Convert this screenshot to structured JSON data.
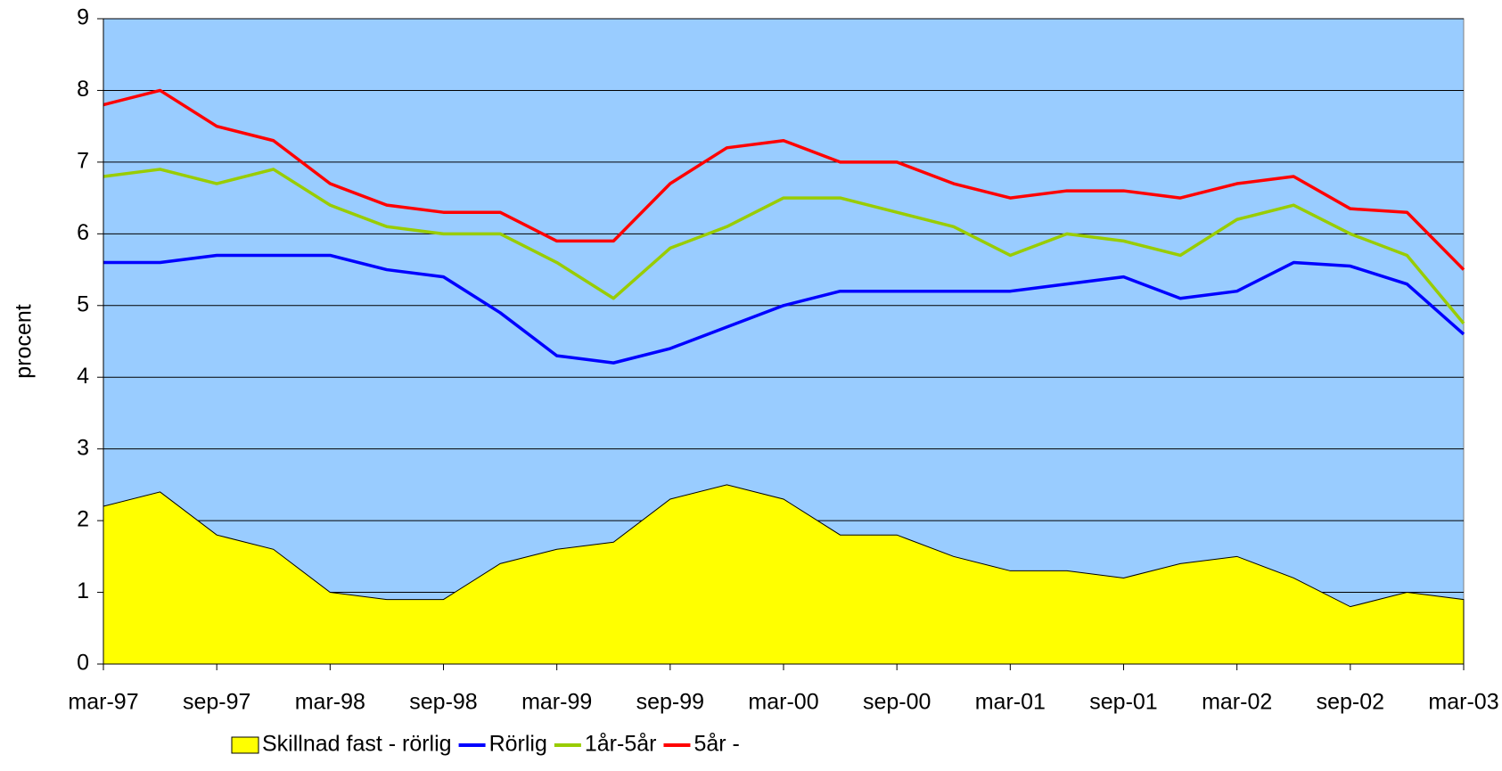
{
  "chart_data": {
    "type": "line",
    "y_label": "procent",
    "categories": [
      "mar-97",
      null,
      "sep-97",
      null,
      "mar-98",
      null,
      "sep-98",
      null,
      "mar-99",
      null,
      "sep-99",
      null,
      "mar-00",
      null,
      "sep-00",
      null,
      "mar-01",
      null,
      "sep-01",
      null,
      "mar-02",
      null,
      "sep-02",
      null,
      "mar-03"
    ],
    "series": [
      {
        "name": "Skillnad fast - rörlig",
        "type": "area",
        "color": "#ffff00",
        "values": [
          2.2,
          2.4,
          1.8,
          1.6,
          1.0,
          0.9,
          0.9,
          1.4,
          1.6,
          1.7,
          2.3,
          2.5,
          2.3,
          1.8,
          1.8,
          1.5,
          1.3,
          1.3,
          1.2,
          1.4,
          1.5,
          1.2,
          0.8,
          1.0,
          0.9
        ]
      },
      {
        "name": "Rörlig",
        "color": "#0000ff",
        "values": [
          5.6,
          5.6,
          5.7,
          5.7,
          5.7,
          5.5,
          5.4,
          4.9,
          4.3,
          4.2,
          4.4,
          4.7,
          5.0,
          5.2,
          5.2,
          5.2,
          5.2,
          5.3,
          5.4,
          5.1,
          5.2,
          5.6,
          5.55,
          5.3,
          4.6
        ]
      },
      {
        "name": "1år-5år",
        "color": "#99cc00",
        "values": [
          6.8,
          6.9,
          6.7,
          6.9,
          6.4,
          6.1,
          6.0,
          6.0,
          5.6,
          5.1,
          5.8,
          6.1,
          6.5,
          6.5,
          6.3,
          6.1,
          5.7,
          6.0,
          5.9,
          5.7,
          6.2,
          6.4,
          6.0,
          5.7,
          4.75
        ]
      },
      {
        "name": "5år -",
        "color": "#ff0000",
        "values": [
          7.8,
          8.0,
          7.5,
          7.3,
          6.7,
          6.4,
          6.3,
          6.3,
          5.9,
          5.9,
          6.7,
          7.2,
          7.3,
          7.0,
          7.0,
          6.7,
          6.5,
          6.6,
          6.6,
          6.5,
          6.7,
          6.8,
          6.35,
          6.3,
          5.5
        ]
      }
    ],
    "ylim": [
      0,
      9
    ],
    "yticks": [
      0,
      1,
      2,
      3,
      4,
      5,
      6,
      7,
      8,
      9
    ],
    "grid": true,
    "plot_background": "#99ccff",
    "legend": "bottom"
  }
}
